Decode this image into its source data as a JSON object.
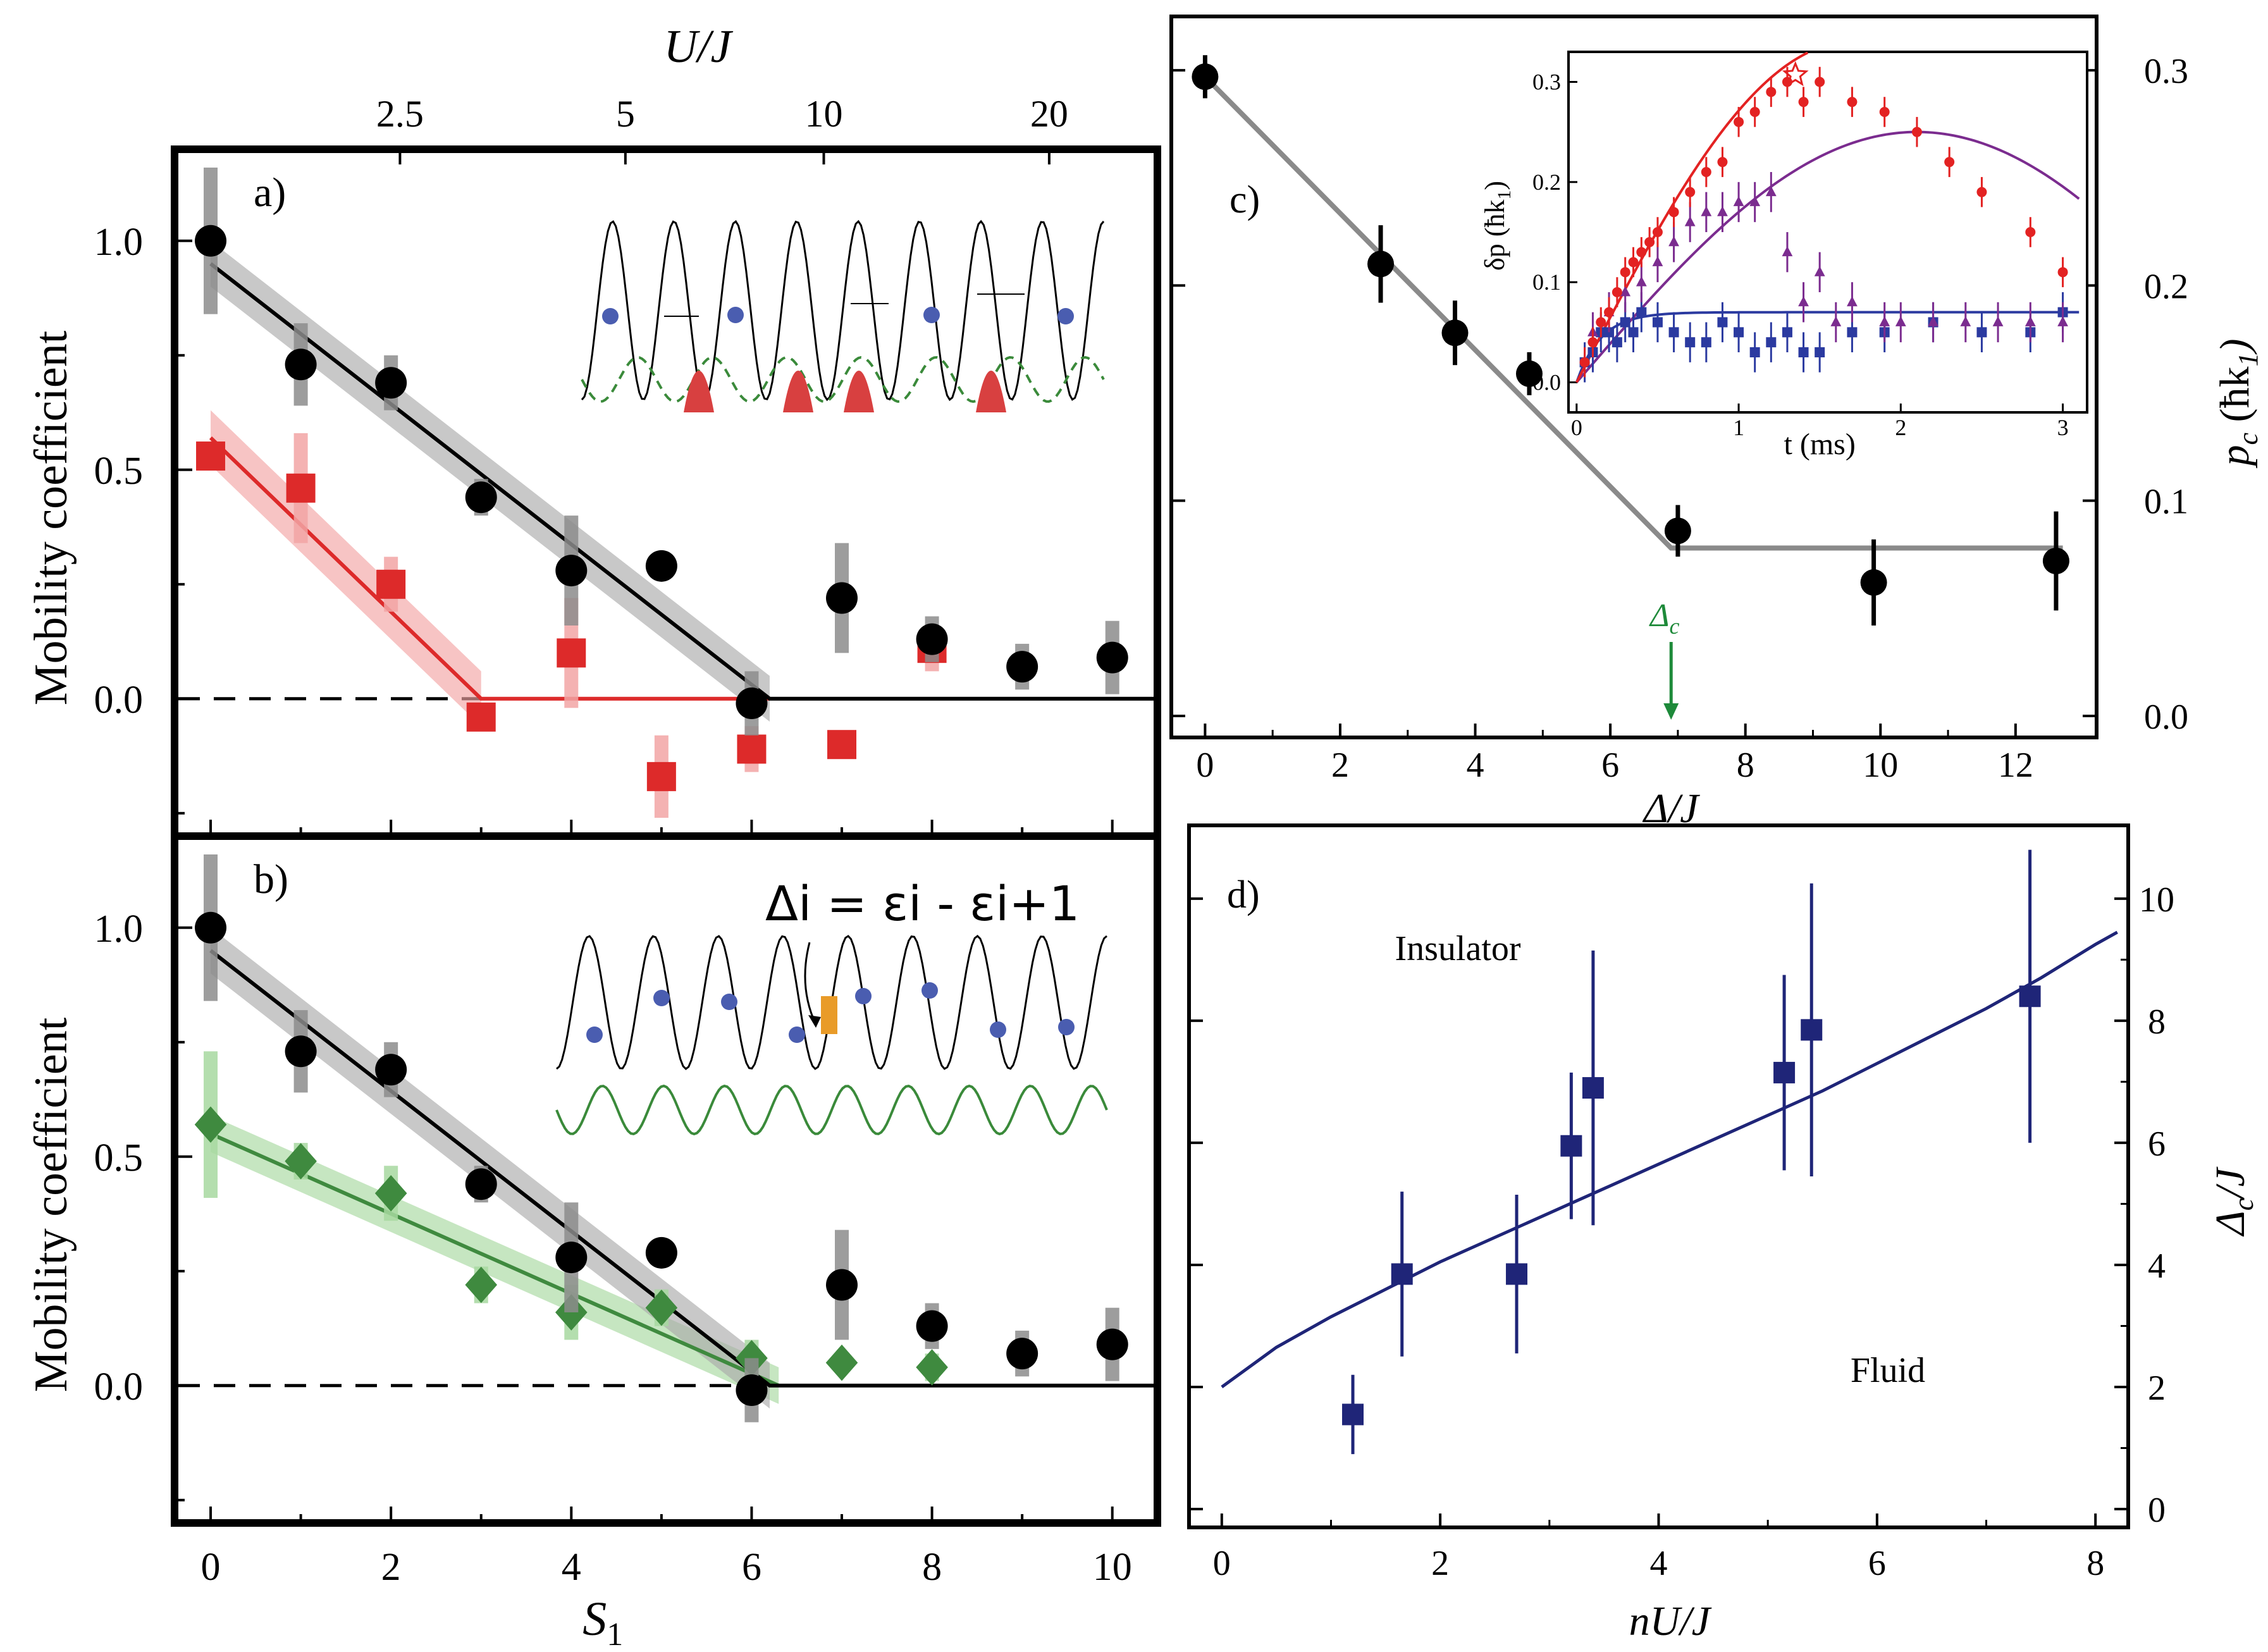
{
  "chart_data": [
    {
      "id": "a",
      "type": "scatter",
      "panel_label": "a)",
      "ylabel": "Mobility coefficient",
      "top_axis_label": "U/J",
      "top_ticks": [
        "2.5",
        "5",
        "10",
        "20"
      ],
      "top_tick_at_S1": [
        2.1,
        4.6,
        6.8,
        9.3
      ],
      "xlim": [
        -0.4,
        10.5
      ],
      "ylim": [
        -0.3,
        1.2
      ],
      "ytick_labels": [
        "0.0",
        "0.5",
        "1.0"
      ],
      "yticks": [
        0.0,
        0.5,
        1.0
      ],
      "series": [
        {
          "name": "black circles",
          "color": "#000000",
          "marker": "circle",
          "x": [
            0,
            1,
            2,
            3,
            4,
            5,
            6,
            7,
            8,
            9,
            10
          ],
          "y": [
            1.0,
            0.73,
            0.69,
            0.44,
            0.28,
            0.29,
            -0.01,
            0.22,
            0.13,
            0.07,
            0.09
          ],
          "err": [
            0.16,
            0.09,
            0.06,
            0.04,
            0.12,
            0.03,
            0.07,
            0.12,
            0.05,
            0.05,
            0.08
          ],
          "fit": [
            [
              0,
              0.95
            ],
            [
              6.2,
              0.0
            ],
            [
              10.5,
              0.0
            ]
          ],
          "band": 0.05,
          "band_color": "#aaaaaa"
        },
        {
          "name": "red squares",
          "color": "#dd2a2a",
          "marker": "square",
          "x": [
            0,
            1,
            2,
            3,
            4,
            5,
            6,
            7,
            8
          ],
          "y": [
            0.53,
            0.46,
            0.25,
            -0.04,
            0.1,
            -0.17,
            -0.11,
            -0.1,
            0.11
          ],
          "err": [
            0.0,
            0.12,
            0.06,
            0.0,
            0.12,
            0.09,
            0.05,
            0.0,
            0.05
          ],
          "fit": [
            [
              0,
              0.57
            ],
            [
              3.0,
              0.0
            ],
            [
              6.2,
              0.0
            ]
          ],
          "band": 0.06,
          "band_color": "#f2a5a5"
        }
      ]
    },
    {
      "id": "b",
      "type": "scatter",
      "panel_label": "b)",
      "ylabel": "Mobility coefficient",
      "xlabel": "S",
      "xlabel_sub": "1",
      "xlim": [
        -0.4,
        10.5
      ],
      "ylim": [
        -0.3,
        1.2
      ],
      "xtick_labels": [
        "0",
        "2",
        "4",
        "6",
        "8",
        "10"
      ],
      "xticks": [
        0,
        2,
        4,
        6,
        8,
        10
      ],
      "ytick_labels": [
        "0.0",
        "0.5",
        "1.0"
      ],
      "yticks": [
        0.0,
        0.5,
        1.0
      ],
      "equation_label": "Δi = εi - εi+1",
      "series": [
        {
          "name": "black circles",
          "color": "#000000",
          "marker": "circle",
          "x": [
            0,
            1,
            2,
            3,
            4,
            5,
            6,
            7,
            8,
            9,
            10
          ],
          "y": [
            1.0,
            0.73,
            0.69,
            0.44,
            0.28,
            0.29,
            -0.01,
            0.22,
            0.13,
            0.07,
            0.09
          ],
          "err": [
            0.16,
            0.09,
            0.06,
            0.04,
            0.12,
            0.03,
            0.07,
            0.12,
            0.05,
            0.05,
            0.08
          ],
          "fit": [
            [
              0,
              0.95
            ],
            [
              6.2,
              0.0
            ],
            [
              10.5,
              0.0
            ]
          ],
          "band": 0.05,
          "band_color": "#aaaaaa"
        },
        {
          "name": "green diamonds",
          "color": "#3f8a3f",
          "marker": "diamond",
          "x": [
            0,
            1,
            2,
            3,
            4,
            5,
            6,
            7,
            8
          ],
          "y": [
            0.57,
            0.49,
            0.42,
            0.22,
            0.16,
            0.17,
            0.06,
            0.05,
            0.04
          ],
          "err": [
            0.16,
            0.04,
            0.06,
            0.04,
            0.06,
            0.04,
            0.04,
            0.0,
            0.03
          ],
          "fit": [
            [
              0,
              0.55
            ],
            [
              6.3,
              0.0
            ]
          ],
          "band": 0.04,
          "band_color": "#a7d8a0"
        }
      ]
    },
    {
      "id": "c",
      "type": "scatter",
      "panel_label": "c)",
      "xlabel": "Δ/J",
      "ylabel_right": "p",
      "ylabel_right_sub": "c",
      "ylabel_right_unit": "(ħk",
      "ylabel_right_unit_sub": "1",
      "xlim": [
        -0.5,
        13.2
      ],
      "ylim": [
        -0.01,
        0.325
      ],
      "xtick_labels": [
        "0",
        "2",
        "4",
        "6",
        "8",
        "10",
        "12"
      ],
      "xticks": [
        0,
        2,
        4,
        6,
        8,
        10,
        12
      ],
      "ytick_labels": [
        "0.0",
        "0.1",
        "0.2",
        "0.3"
      ],
      "yticks": [
        0.0,
        0.1,
        0.2,
        0.3
      ],
      "series": [
        {
          "name": "black circles",
          "color": "#000000",
          "marker": "circle",
          "x": [
            0,
            2.6,
            3.7,
            4.8,
            7.0,
            9.9,
            12.6
          ],
          "y": [
            0.297,
            0.21,
            0.178,
            0.159,
            0.086,
            0.062,
            0.072
          ],
          "err": [
            0.01,
            0.018,
            0.015,
            0.01,
            0.012,
            0.02,
            0.023
          ],
          "fit": [
            [
              0,
              0.297
            ],
            [
              6.9,
              0.078
            ],
            [
              12.7,
              0.078
            ]
          ]
        }
      ],
      "annotation": "Δ",
      "annotation_sub": "c",
      "annotation_x": 6.9,
      "inset": {
        "xlabel": "t (ms)",
        "ylabel": "δp",
        "ylabel_unit": "(ħk",
        "ylabel_unit_sub": "1",
        "xlim": [
          -0.05,
          3.15
        ],
        "ylim": [
          -0.03,
          0.33
        ],
        "xtick_labels": [
          "0",
          "1",
          "2",
          "3"
        ],
        "xticks": [
          0,
          1,
          2,
          3
        ],
        "ytick_labels": [
          "0.0",
          "0.1",
          "0.2",
          "0.3"
        ],
        "yticks": [
          0.0,
          0.1,
          0.2,
          0.3
        ],
        "series": [
          {
            "name": "red circles",
            "color": "#e32222",
            "marker": "circle",
            "x": [
              0.05,
              0.1,
              0.15,
              0.2,
              0.25,
              0.3,
              0.35,
              0.4,
              0.45,
              0.5,
              0.6,
              0.7,
              0.8,
              0.9,
              1.0,
              1.1,
              1.2,
              1.3,
              1.4,
              1.5,
              1.7,
              1.9,
              2.1,
              2.3,
              2.5,
              2.8,
              3.0
            ],
            "y": [
              0.02,
              0.04,
              0.06,
              0.07,
              0.09,
              0.11,
              0.12,
              0.13,
              0.14,
              0.15,
              0.17,
              0.19,
              0.21,
              0.22,
              0.26,
              0.27,
              0.29,
              0.3,
              0.28,
              0.3,
              0.28,
              0.27,
              0.25,
              0.22,
              0.19,
              0.15,
              0.11
            ],
            "err": 0.015
          },
          {
            "name": "purple triangles",
            "color": "#7b2c8f",
            "marker": "triangle",
            "x": [
              0.1,
              0.2,
              0.3,
              0.4,
              0.5,
              0.6,
              0.7,
              0.8,
              0.9,
              1.0,
              1.1,
              1.2,
              1.3,
              1.4,
              1.5,
              1.6,
              1.7,
              1.9,
              2.0,
              2.2,
              2.4,
              2.6,
              2.8,
              3.0
            ],
            "y": [
              0.05,
              0.07,
              0.09,
              0.1,
              0.12,
              0.14,
              0.16,
              0.17,
              0.17,
              0.18,
              0.18,
              0.19,
              0.13,
              0.08,
              0.11,
              0.06,
              0.08,
              0.06,
              0.06,
              0.06,
              0.06,
              0.06,
              0.06,
              0.06
            ],
            "err": 0.02
          },
          {
            "name": "blue squares",
            "color": "#2b3aa0",
            "marker": "square",
            "x": [
              0.05,
              0.1,
              0.15,
              0.2,
              0.25,
              0.3,
              0.35,
              0.4,
              0.5,
              0.6,
              0.7,
              0.8,
              0.9,
              1.0,
              1.1,
              1.2,
              1.3,
              1.4,
              1.5,
              1.7,
              1.9,
              2.2,
              2.5,
              2.8,
              3.0
            ],
            "y": [
              0.02,
              0.03,
              0.05,
              0.05,
              0.04,
              0.06,
              0.05,
              0.07,
              0.06,
              0.05,
              0.04,
              0.04,
              0.06,
              0.05,
              0.03,
              0.04,
              0.05,
              0.03,
              0.03,
              0.05,
              0.05,
              0.06,
              0.05,
              0.05,
              0.07
            ],
            "err": 0.02
          }
        ]
      }
    },
    {
      "id": "d",
      "type": "scatter",
      "panel_label": "d)",
      "xlabel": "nU/J",
      "ylabel_right": "Δ",
      "ylabel_right_sub": "c",
      "ylabel_right_tail": "/J",
      "xlim": [
        -0.3,
        8.3
      ],
      "ylim": [
        -0.3,
        11.2
      ],
      "xtick_labels": [
        "0",
        "2",
        "4",
        "6",
        "8"
      ],
      "xticks": [
        0,
        2,
        4,
        6,
        8
      ],
      "ytick_labels": [
        "0",
        "2",
        "4",
        "6",
        "8",
        "10"
      ],
      "yticks": [
        0,
        2,
        4,
        6,
        8,
        10
      ],
      "region_labels": [
        "Insulator",
        "Fluid"
      ],
      "series": [
        {
          "name": "blue squares",
          "color": "#1f2578",
          "marker": "square",
          "x": [
            1.2,
            1.65,
            2.7,
            3.2,
            3.4,
            5.15,
            5.4,
            7.4
          ],
          "y": [
            1.55,
            3.85,
            3.85,
            5.95,
            6.9,
            7.15,
            7.85,
            8.4
          ],
          "err": [
            0.65,
            1.35,
            1.3,
            1.2,
            2.25,
            1.6,
            2.4,
            2.4
          ]
        }
      ],
      "curve": {
        "x": [
          0,
          0.5,
          1,
          1.5,
          2,
          2.5,
          3,
          3.5,
          4,
          4.5,
          5,
          5.5,
          6,
          6.5,
          7,
          7.5,
          8,
          8.2
        ],
        "y": [
          2.0,
          2.65,
          3.15,
          3.6,
          4.05,
          4.45,
          4.85,
          5.25,
          5.65,
          6.05,
          6.45,
          6.85,
          7.3,
          7.75,
          8.2,
          8.7,
          9.25,
          9.45
        ]
      }
    }
  ]
}
